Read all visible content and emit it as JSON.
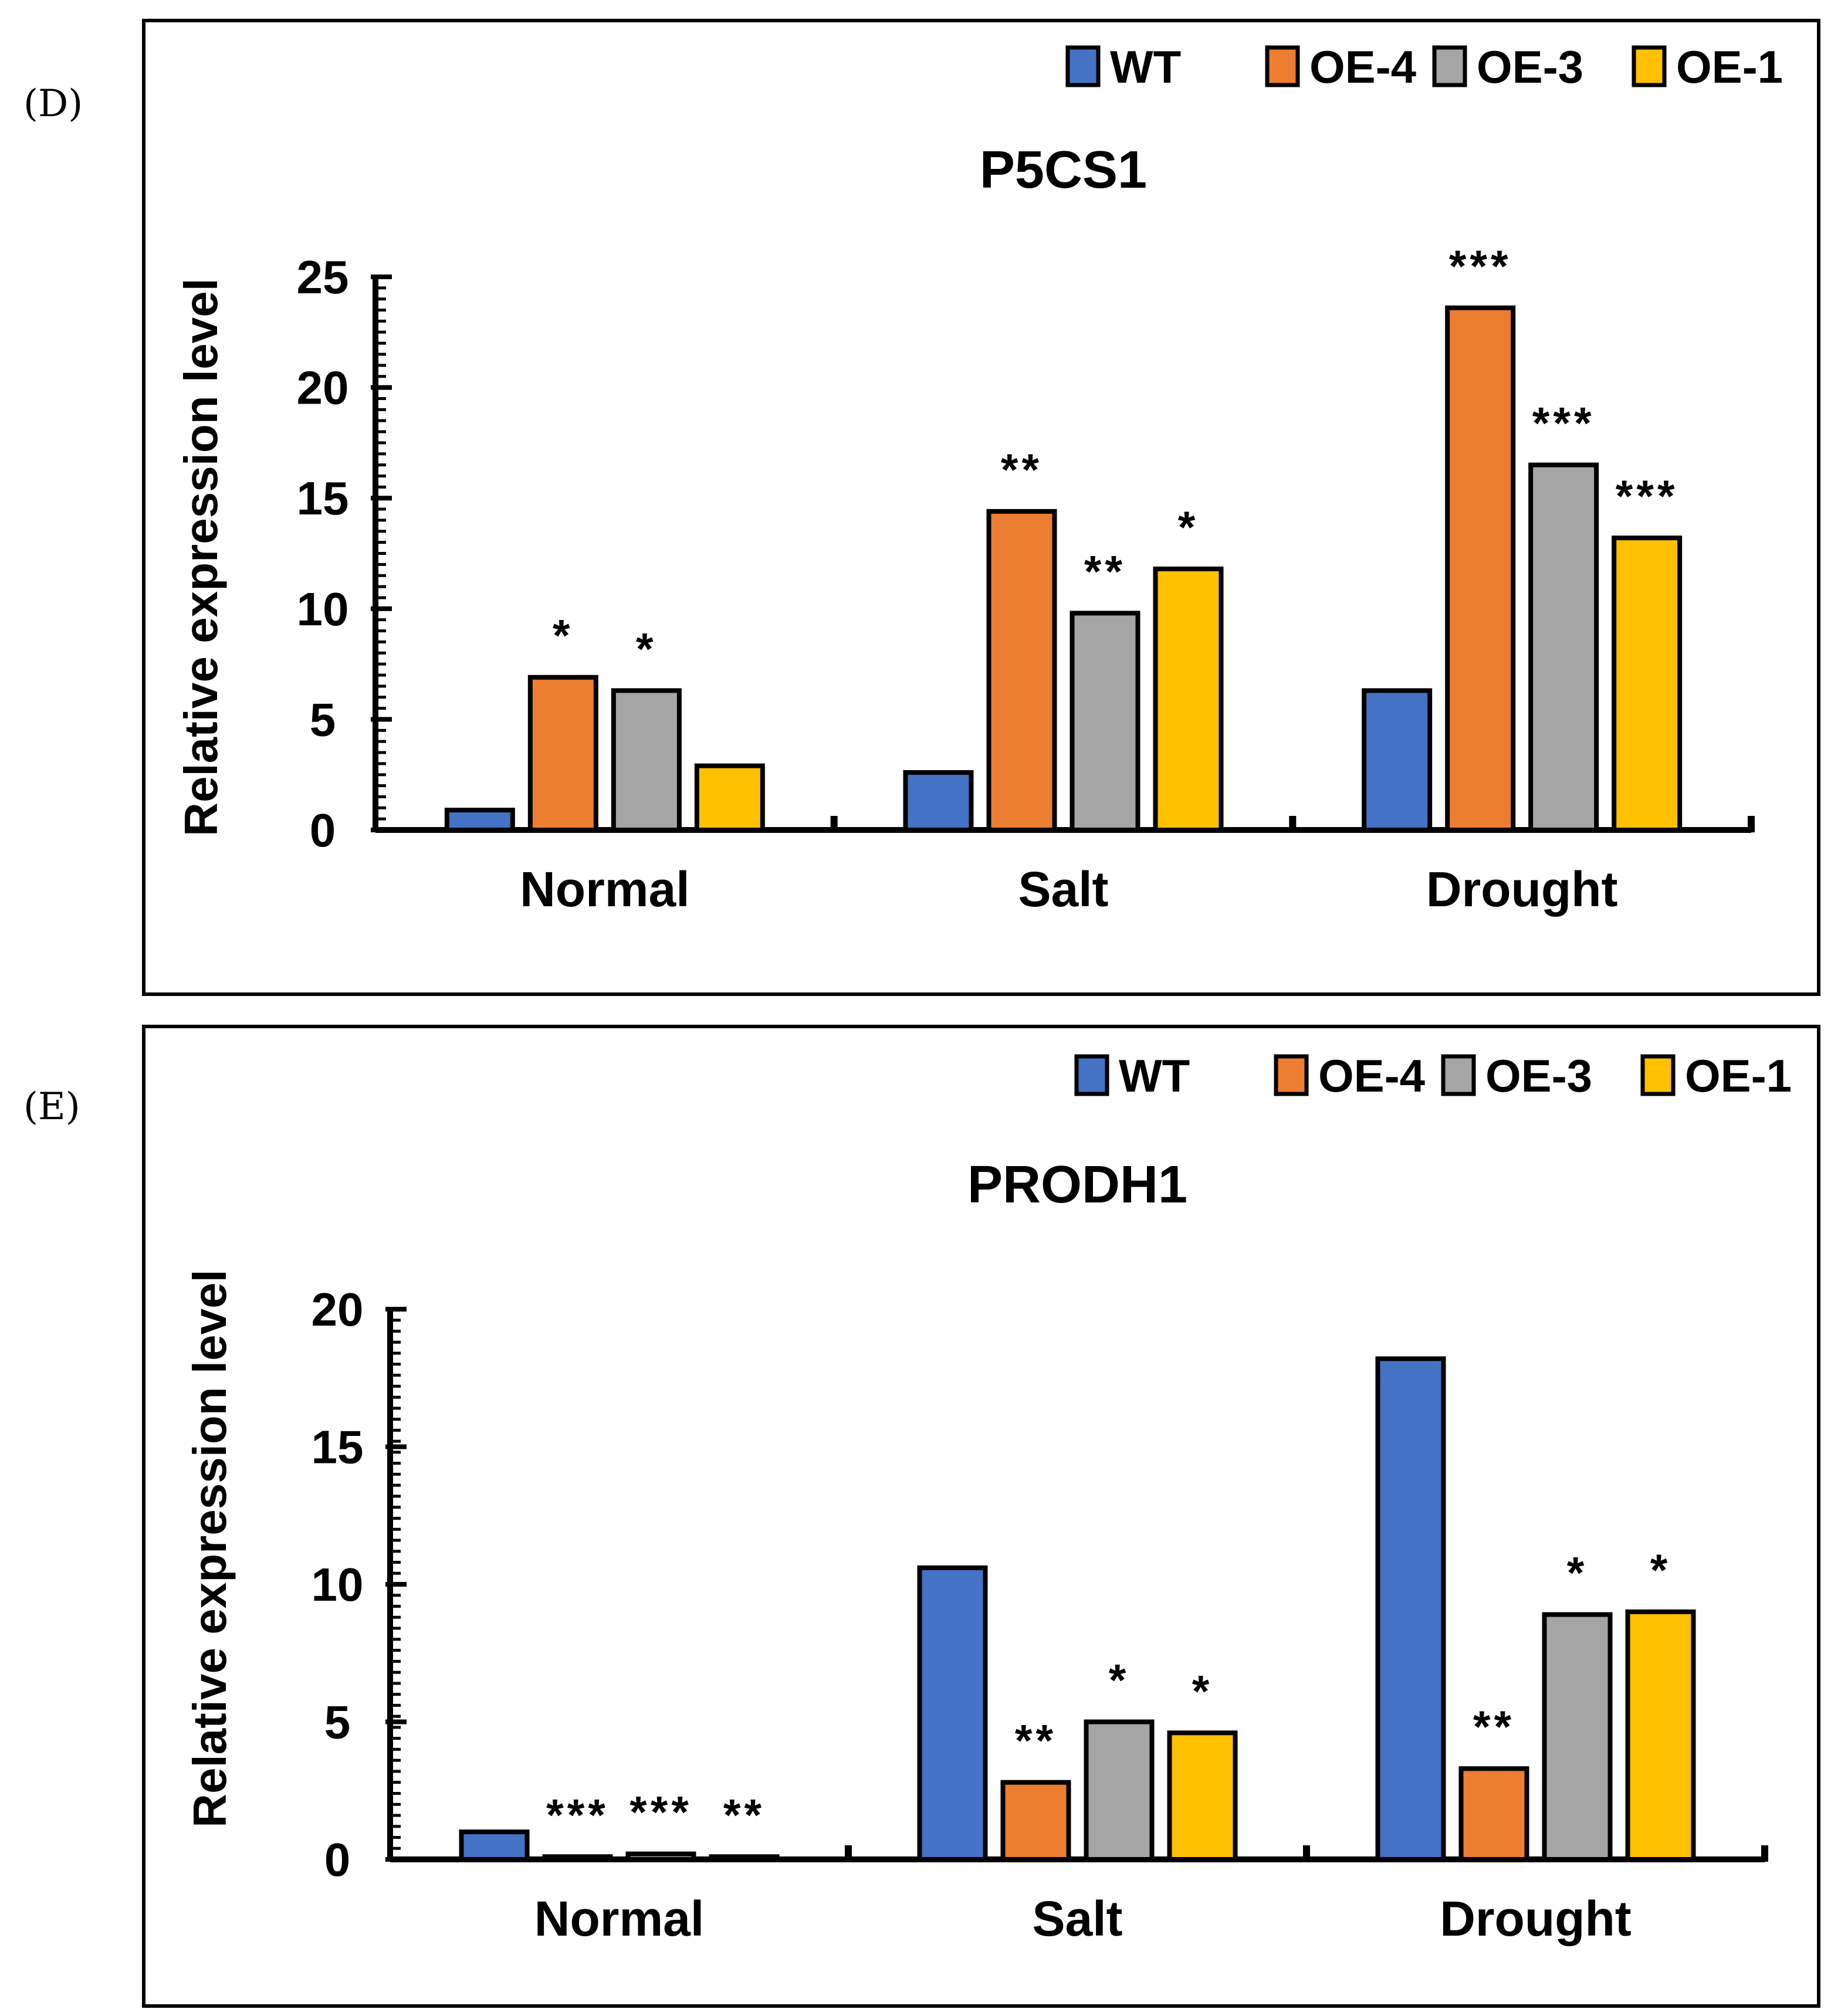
{
  "panels": [
    {
      "label": "(D)"
    },
    {
      "label": "(E)"
    }
  ],
  "legend": [
    {
      "name": "WT",
      "color": "#4472C4"
    },
    {
      "name": "OE-4",
      "color": "#ED7D31"
    },
    {
      "name": "OE-3",
      "color": "#A5A5A5"
    },
    {
      "name": "OE-1",
      "color": "#FFC000"
    }
  ],
  "chart_data": [
    {
      "type": "bar",
      "title": "P5CS1",
      "ylabel": "Relative expression level",
      "xlabel": "",
      "categories": [
        "Normal",
        "Salt",
        "Drought"
      ],
      "ylim": [
        0,
        25
      ],
      "yticks": [
        0,
        5,
        10,
        15,
        20,
        25
      ],
      "series": [
        {
          "name": "WT",
          "values": [
            0.9,
            2.6,
            6.3
          ],
          "sig": [
            "",
            "",
            ""
          ]
        },
        {
          "name": "OE-4",
          "values": [
            6.9,
            14.4,
            23.6
          ],
          "sig": [
            "*",
            "**",
            "***"
          ]
        },
        {
          "name": "OE-3",
          "values": [
            6.3,
            9.8,
            16.5
          ],
          "sig": [
            "*",
            "**",
            "***"
          ]
        },
        {
          "name": "OE-1",
          "values": [
            2.9,
            11.8,
            13.2
          ],
          "sig": [
            "",
            "*",
            "***"
          ]
        }
      ]
    },
    {
      "type": "bar",
      "title": "PRODH1",
      "ylabel": "Relative expression level",
      "xlabel": "",
      "categories": [
        "Normal",
        "Salt",
        "Drought"
      ],
      "ylim": [
        0,
        20
      ],
      "yticks": [
        0,
        5,
        10,
        15,
        20
      ],
      "series": [
        {
          "name": "WT",
          "values": [
            1.0,
            10.6,
            18.2
          ],
          "sig": [
            "",
            "",
            ""
          ]
        },
        {
          "name": "OE-4",
          "values": [
            0.1,
            2.8,
            3.3
          ],
          "sig": [
            "***",
            "**",
            "**"
          ]
        },
        {
          "name": "OE-3",
          "values": [
            0.2,
            5.0,
            8.9
          ],
          "sig": [
            "***",
            "*",
            "*"
          ]
        },
        {
          "name": "OE-1",
          "values": [
            0.1,
            4.6,
            9.0
          ],
          "sig": [
            "**",
            "*",
            "*"
          ]
        }
      ]
    }
  ]
}
